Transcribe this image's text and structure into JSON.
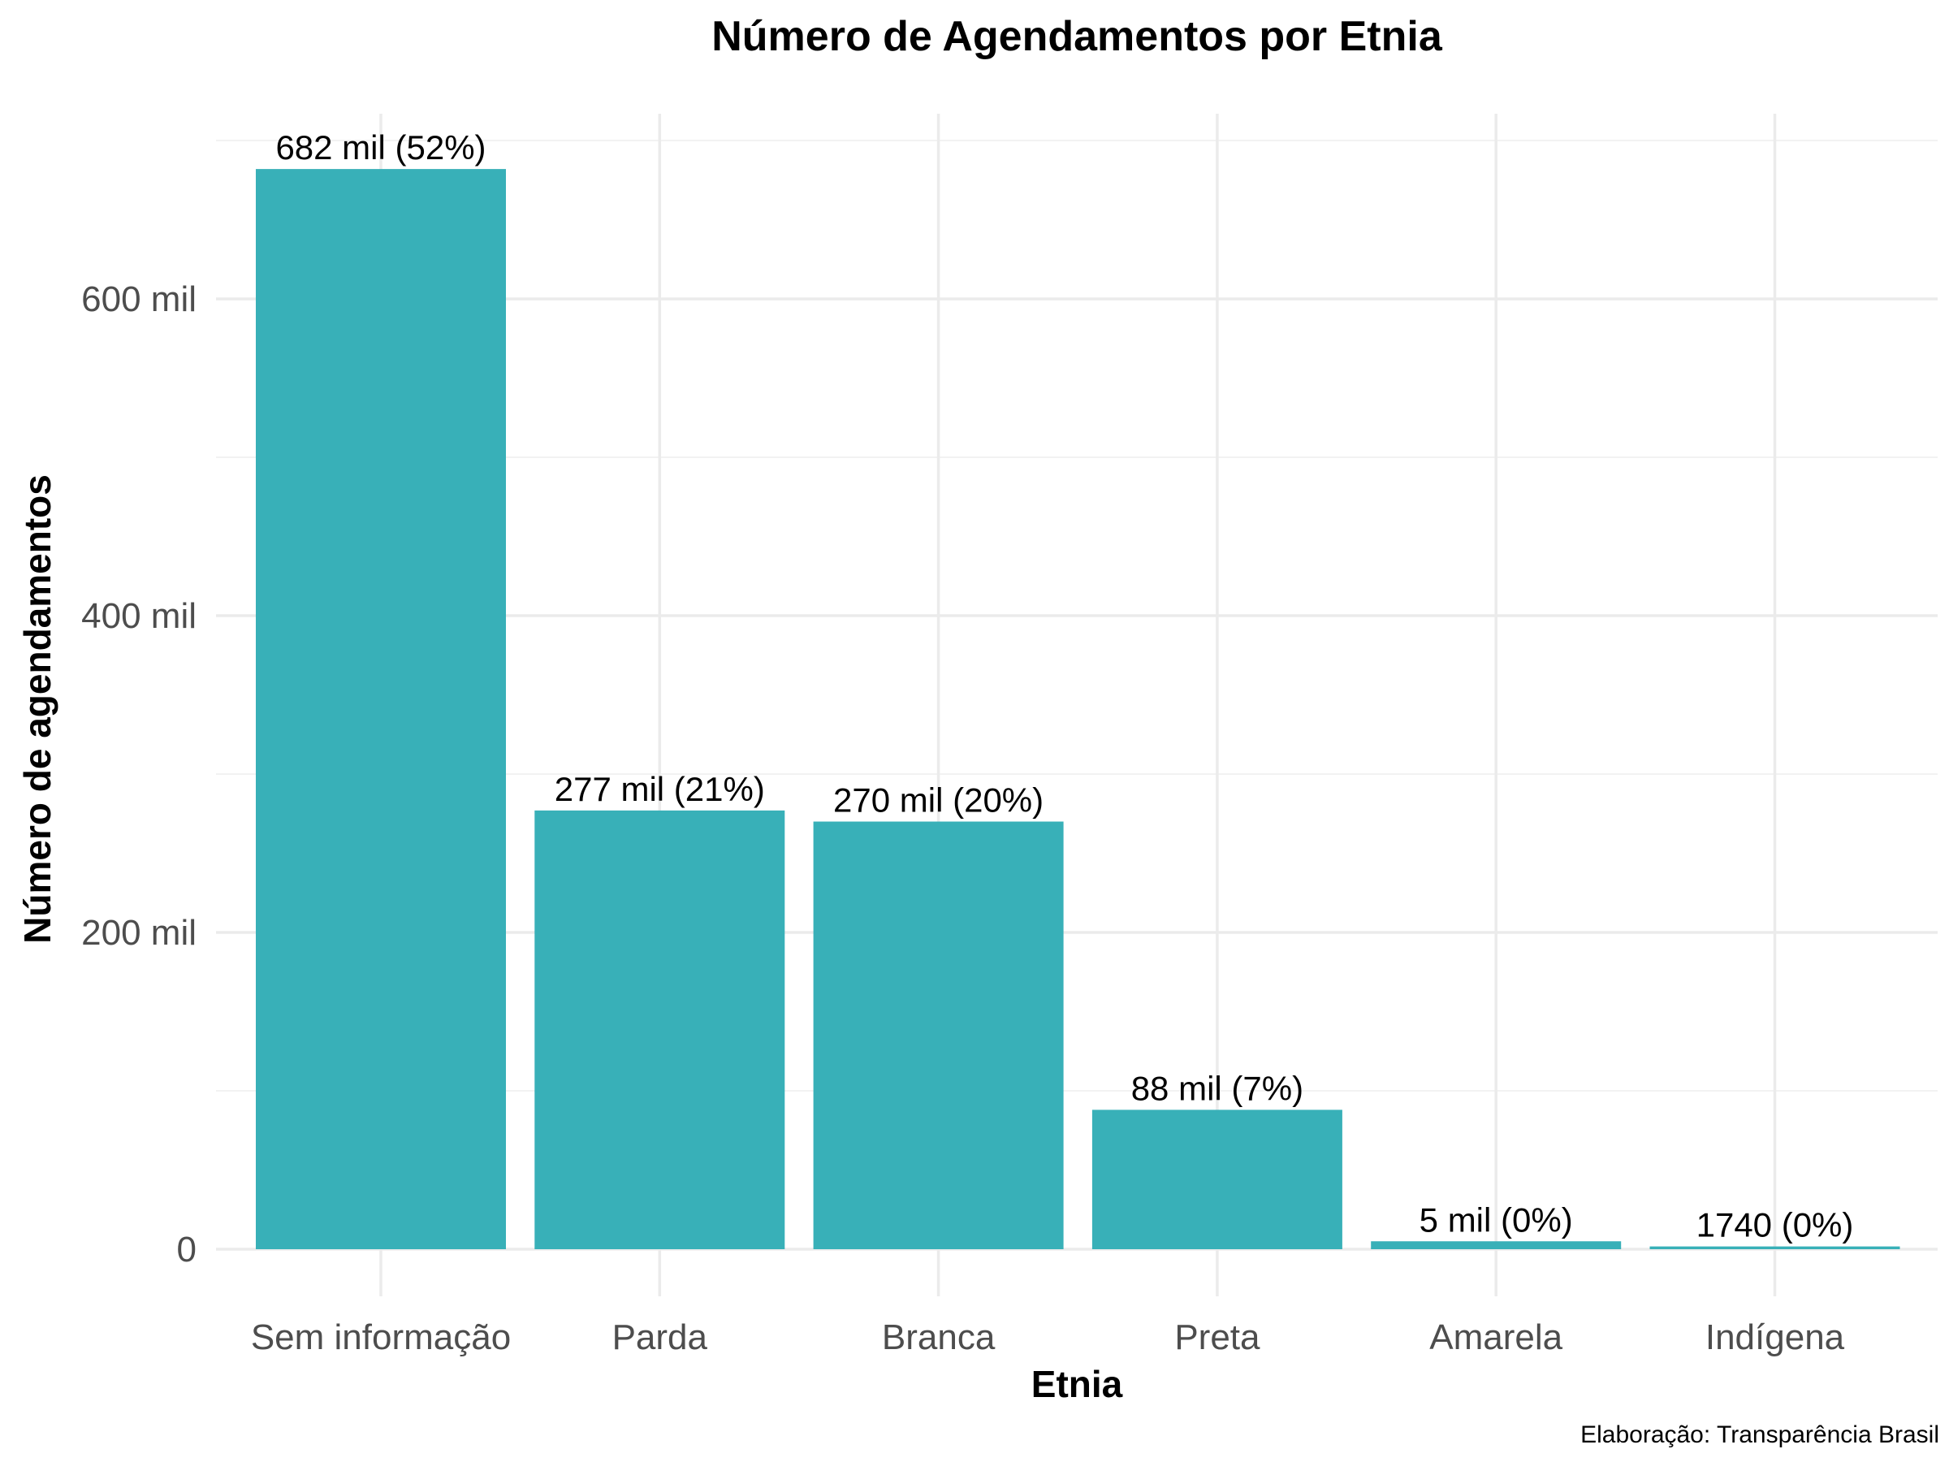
{
  "chart_data": {
    "type": "bar",
    "title": "Número de Agendamentos por Etnia",
    "xlabel": "Etnia",
    "ylabel": "Número de agendamentos",
    "caption": "Elaboração: Transparência Brasil",
    "categories": [
      "Sem informação",
      "Parda",
      "Branca",
      "Preta",
      "Amarela",
      "Indígena"
    ],
    "values": [
      682000,
      277000,
      270000,
      88000,
      5000,
      1740
    ],
    "data_labels": [
      "682 mil (52%)",
      "277 mil (21%)",
      "270 mil (20%)",
      "88 mil (7%)",
      "5 mil (0%)",
      "1740 (0%)"
    ],
    "ylim": [
      0,
      700000
    ],
    "yticks": [
      0,
      200000,
      400000,
      600000
    ],
    "ytick_labels": [
      "0",
      "200 mil",
      "400 mil",
      "600 mil"
    ],
    "grid": true,
    "bar_color": "#38b0b8"
  }
}
